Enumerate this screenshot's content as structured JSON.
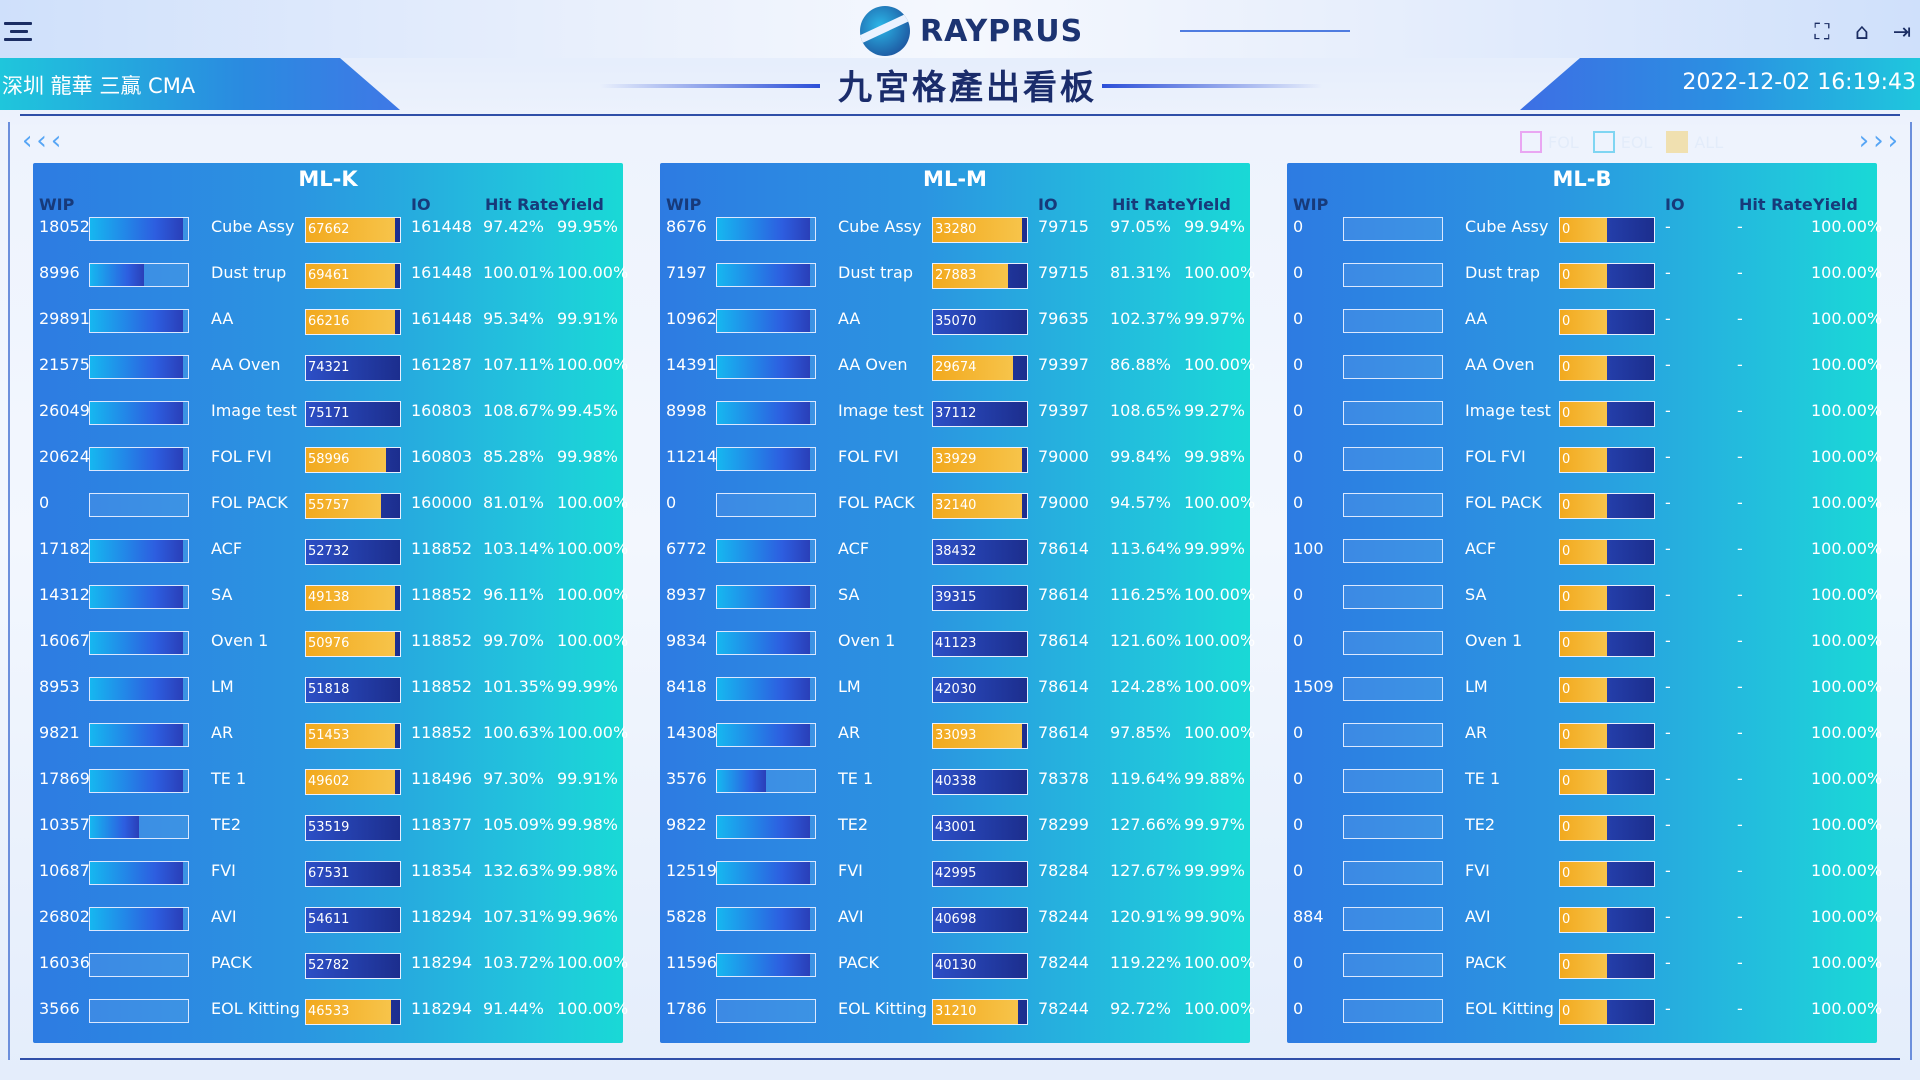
{
  "header": {
    "logo_text": "RAYPRUS",
    "site_name": "深圳 龍華 三贏 CMA",
    "title": "九宮格產出看板",
    "datetime": "2022-12-02 16:19:43"
  },
  "legend": [
    {
      "label": "FOL",
      "color": "#e9a6f2"
    },
    {
      "label": "EOL",
      "color": "#7fd5f2"
    },
    {
      "label": "ALL",
      "color": "#f0e0b0"
    }
  ],
  "columns": {
    "wip": "WIP",
    "io": "IO",
    "hit": "Hit Rate",
    "yield": "Yield"
  },
  "panels": [
    {
      "name": "ML-K",
      "rows": [
        {
          "wip": "18052",
          "wip_frac": 0.95,
          "proc": "Cube Assy",
          "io_val": "67662",
          "io_frac": 0.95,
          "io": "161448",
          "hit": "97.42%",
          "yield": "99.95%"
        },
        {
          "wip": "8996",
          "wip_frac": 0.55,
          "proc": "Dust trup",
          "io_val": "69461",
          "io_frac": 0.95,
          "io": "161448",
          "hit": "100.01%",
          "yield": "100.00%"
        },
        {
          "wip": "29891",
          "wip_frac": 0.95,
          "proc": "AA",
          "io_val": "66216",
          "io_frac": 0.95,
          "io": "161448",
          "hit": "95.34%",
          "yield": "99.91%"
        },
        {
          "wip": "21575",
          "wip_frac": 0.95,
          "proc": "AA Oven",
          "io_val": "74321",
          "io_frac": 0,
          "io": "161287",
          "hit": "107.11%",
          "yield": "100.00%"
        },
        {
          "wip": "26049",
          "wip_frac": 0.95,
          "proc": "Image test",
          "io_val": "75171",
          "io_frac": 0,
          "io": "160803",
          "hit": "108.67%",
          "yield": "99.45%"
        },
        {
          "wip": "20624",
          "wip_frac": 0.95,
          "proc": "FOL FVI",
          "io_val": "58996",
          "io_frac": 0.85,
          "io": "160803",
          "hit": "85.28%",
          "yield": "99.98%"
        },
        {
          "wip": "0",
          "wip_frac": 0,
          "proc": "FOL PACK",
          "io_val": "55757",
          "io_frac": 0.8,
          "io": "160000",
          "hit": "81.01%",
          "yield": "100.00%"
        },
        {
          "wip": "17182",
          "wip_frac": 0.95,
          "proc": "ACF",
          "io_val": "52732",
          "io_frac": 0,
          "io": "118852",
          "hit": "103.14%",
          "yield": "100.00%"
        },
        {
          "wip": "14312",
          "wip_frac": 0.95,
          "proc": "SA",
          "io_val": "49138",
          "io_frac": 0.95,
          "io": "118852",
          "hit": "96.11%",
          "yield": "100.00%"
        },
        {
          "wip": "16067",
          "wip_frac": 0.95,
          "proc": "Oven 1",
          "io_val": "50976",
          "io_frac": 0.95,
          "io": "118852",
          "hit": "99.70%",
          "yield": "100.00%"
        },
        {
          "wip": "8953",
          "wip_frac": 0.95,
          "proc": "LM",
          "io_val": "51818",
          "io_frac": 0,
          "io": "118852",
          "hit": "101.35%",
          "yield": "99.99%"
        },
        {
          "wip": "9821",
          "wip_frac": 0.95,
          "proc": "AR",
          "io_val": "51453",
          "io_frac": 0.95,
          "io": "118852",
          "hit": "100.63%",
          "yield": "100.00%"
        },
        {
          "wip": "17869",
          "wip_frac": 0.95,
          "proc": "TE 1",
          "io_val": "49602",
          "io_frac": 0.95,
          "io": "118496",
          "hit": "97.30%",
          "yield": "99.91%"
        },
        {
          "wip": "10357",
          "wip_frac": 0.5,
          "proc": "TE2",
          "io_val": "53519",
          "io_frac": 0,
          "io": "118377",
          "hit": "105.09%",
          "yield": "99.98%"
        },
        {
          "wip": "10687",
          "wip_frac": 0.95,
          "proc": "FVI",
          "io_val": "67531",
          "io_frac": 0,
          "io": "118354",
          "hit": "132.63%",
          "yield": "99.98%"
        },
        {
          "wip": "26802",
          "wip_frac": 0.95,
          "proc": "AVI",
          "io_val": "54611",
          "io_frac": 0,
          "io": "118294",
          "hit": "107.31%",
          "yield": "99.96%"
        },
        {
          "wip": "16036",
          "wip_frac": 0,
          "proc": "PACK",
          "io_val": "52782",
          "io_frac": 0,
          "io": "118294",
          "hit": "103.72%",
          "yield": "100.00%"
        },
        {
          "wip": "3566",
          "wip_frac": 0,
          "proc": "EOL Kitting",
          "io_val": "46533",
          "io_frac": 0.9,
          "io": "118294",
          "hit": "91.44%",
          "yield": "100.00%"
        }
      ]
    },
    {
      "name": "ML-M",
      "rows": [
        {
          "wip": "8676",
          "wip_frac": 0.95,
          "proc": "Cube Assy",
          "io_val": "33280",
          "io_frac": 0.95,
          "io": "79715",
          "hit": "97.05%",
          "yield": "99.94%"
        },
        {
          "wip": "7197",
          "wip_frac": 0.95,
          "proc": "Dust trap",
          "io_val": "27883",
          "io_frac": 0.8,
          "io": "79715",
          "hit": "81.31%",
          "yield": "100.00%"
        },
        {
          "wip": "10962",
          "wip_frac": 0.95,
          "proc": "AA",
          "io_val": "35070",
          "io_frac": 0,
          "io": "79635",
          "hit": "102.37%",
          "yield": "99.97%"
        },
        {
          "wip": "14391",
          "wip_frac": 0.95,
          "proc": "AA Oven",
          "io_val": "29674",
          "io_frac": 0.85,
          "io": "79397",
          "hit": "86.88%",
          "yield": "100.00%"
        },
        {
          "wip": "8998",
          "wip_frac": 0.95,
          "proc": "Image test",
          "io_val": "37112",
          "io_frac": 0,
          "io": "79397",
          "hit": "108.65%",
          "yield": "99.27%"
        },
        {
          "wip": "11214",
          "wip_frac": 0.95,
          "proc": "FOL FVI",
          "io_val": "33929",
          "io_frac": 0.95,
          "io": "79000",
          "hit": "99.84%",
          "yield": "99.98%"
        },
        {
          "wip": "0",
          "wip_frac": 0,
          "proc": "FOL PACK",
          "io_val": "32140",
          "io_frac": 0.95,
          "io": "79000",
          "hit": "94.57%",
          "yield": "100.00%"
        },
        {
          "wip": "6772",
          "wip_frac": 0.95,
          "proc": "ACF",
          "io_val": "38432",
          "io_frac": 0,
          "io": "78614",
          "hit": "113.64%",
          "yield": "99.99%"
        },
        {
          "wip": "8937",
          "wip_frac": 0.95,
          "proc": "SA",
          "io_val": "39315",
          "io_frac": 0,
          "io": "78614",
          "hit": "116.25%",
          "yield": "100.00%"
        },
        {
          "wip": "9834",
          "wip_frac": 0.95,
          "proc": "Oven 1",
          "io_val": "41123",
          "io_frac": 0,
          "io": "78614",
          "hit": "121.60%",
          "yield": "100.00%"
        },
        {
          "wip": "8418",
          "wip_frac": 0.95,
          "proc": "LM",
          "io_val": "42030",
          "io_frac": 0,
          "io": "78614",
          "hit": "124.28%",
          "yield": "100.00%"
        },
        {
          "wip": "14308",
          "wip_frac": 0.95,
          "proc": "AR",
          "io_val": "33093",
          "io_frac": 0.95,
          "io": "78614",
          "hit": "97.85%",
          "yield": "100.00%"
        },
        {
          "wip": "3576",
          "wip_frac": 0.5,
          "proc": "TE 1",
          "io_val": "40338",
          "io_frac": 0,
          "io": "78378",
          "hit": "119.64%",
          "yield": "99.88%"
        },
        {
          "wip": "9822",
          "wip_frac": 0.95,
          "proc": "TE2",
          "io_val": "43001",
          "io_frac": 0,
          "io": "78299",
          "hit": "127.66%",
          "yield": "99.97%"
        },
        {
          "wip": "12519",
          "wip_frac": 0.95,
          "proc": "FVI",
          "io_val": "42995",
          "io_frac": 0,
          "io": "78284",
          "hit": "127.67%",
          "yield": "99.99%"
        },
        {
          "wip": "5828",
          "wip_frac": 0.95,
          "proc": "AVI",
          "io_val": "40698",
          "io_frac": 0,
          "io": "78244",
          "hit": "120.91%",
          "yield": "99.90%"
        },
        {
          "wip": "11596",
          "wip_frac": 0.95,
          "proc": "PACK",
          "io_val": "40130",
          "io_frac": 0,
          "io": "78244",
          "hit": "119.22%",
          "yield": "100.00%"
        },
        {
          "wip": "1786",
          "wip_frac": 0,
          "proc": "EOL Kitting",
          "io_val": "31210",
          "io_frac": 0.9,
          "io": "78244",
          "hit": "92.72%",
          "yield": "100.00%"
        }
      ]
    },
    {
      "name": "ML-B",
      "rows": [
        {
          "wip": "0",
          "wip_frac": 0,
          "proc": "Cube Assy",
          "io_val": "0",
          "io_frac": 0.5,
          "io": "-",
          "hit": "-",
          "yield": "100.00%"
        },
        {
          "wip": "0",
          "wip_frac": 0,
          "proc": "Dust trap",
          "io_val": "0",
          "io_frac": 0.5,
          "io": "-",
          "hit": "-",
          "yield": "100.00%"
        },
        {
          "wip": "0",
          "wip_frac": 0,
          "proc": "AA",
          "io_val": "0",
          "io_frac": 0.5,
          "io": "-",
          "hit": "-",
          "yield": "100.00%"
        },
        {
          "wip": "0",
          "wip_frac": 0,
          "proc": "AA Oven",
          "io_val": "0",
          "io_frac": 0.5,
          "io": "-",
          "hit": "-",
          "yield": "100.00%"
        },
        {
          "wip": "0",
          "wip_frac": 0,
          "proc": "Image test",
          "io_val": "0",
          "io_frac": 0.5,
          "io": "-",
          "hit": "-",
          "yield": "100.00%"
        },
        {
          "wip": "0",
          "wip_frac": 0,
          "proc": "FOL FVI",
          "io_val": "0",
          "io_frac": 0.5,
          "io": "-",
          "hit": "-",
          "yield": "100.00%"
        },
        {
          "wip": "0",
          "wip_frac": 0,
          "proc": "FOL PACK",
          "io_val": "0",
          "io_frac": 0.5,
          "io": "-",
          "hit": "-",
          "yield": "100.00%"
        },
        {
          "wip": "100",
          "wip_frac": 0,
          "proc": "ACF",
          "io_val": "0",
          "io_frac": 0.5,
          "io": "-",
          "hit": "-",
          "yield": "100.00%"
        },
        {
          "wip": "0",
          "wip_frac": 0,
          "proc": "SA",
          "io_val": "0",
          "io_frac": 0.5,
          "io": "-",
          "hit": "-",
          "yield": "100.00%"
        },
        {
          "wip": "0",
          "wip_frac": 0,
          "proc": "Oven 1",
          "io_val": "0",
          "io_frac": 0.5,
          "io": "-",
          "hit": "-",
          "yield": "100.00%"
        },
        {
          "wip": "1509",
          "wip_frac": 0,
          "proc": "LM",
          "io_val": "0",
          "io_frac": 0.5,
          "io": "-",
          "hit": "-",
          "yield": "100.00%"
        },
        {
          "wip": "0",
          "wip_frac": 0,
          "proc": "AR",
          "io_val": "0",
          "io_frac": 0.5,
          "io": "-",
          "hit": "-",
          "yield": "100.00%"
        },
        {
          "wip": "0",
          "wip_frac": 0,
          "proc": "TE 1",
          "io_val": "0",
          "io_frac": 0.5,
          "io": "-",
          "hit": "-",
          "yield": "100.00%"
        },
        {
          "wip": "0",
          "wip_frac": 0,
          "proc": "TE2",
          "io_val": "0",
          "io_frac": 0.5,
          "io": "-",
          "hit": "-",
          "yield": "100.00%"
        },
        {
          "wip": "0",
          "wip_frac": 0,
          "proc": "FVI",
          "io_val": "0",
          "io_frac": 0.5,
          "io": "-",
          "hit": "-",
          "yield": "100.00%"
        },
        {
          "wip": "884",
          "wip_frac": 0,
          "proc": "AVI",
          "io_val": "0",
          "io_frac": 0.5,
          "io": "-",
          "hit": "-",
          "yield": "100.00%"
        },
        {
          "wip": "0",
          "wip_frac": 0,
          "proc": "PACK",
          "io_val": "0",
          "io_frac": 0.5,
          "io": "-",
          "hit": "-",
          "yield": "100.00%"
        },
        {
          "wip": "0",
          "wip_frac": 0,
          "proc": "EOL Kitting",
          "io_val": "0",
          "io_frac": 0.5,
          "io": "-",
          "hit": "-",
          "yield": "100.00%"
        }
      ]
    }
  ]
}
